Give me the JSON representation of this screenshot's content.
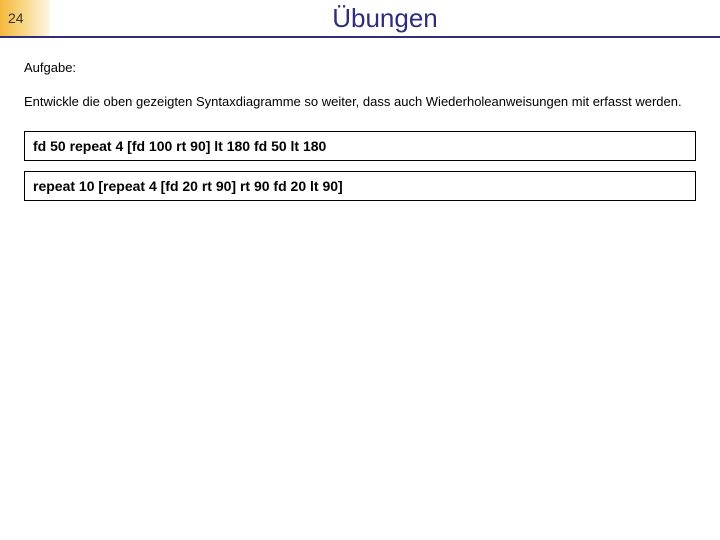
{
  "slide": {
    "number": "24",
    "title": "Übungen"
  },
  "task": {
    "label": "Aufgabe:",
    "text": "Entwickle die oben gezeigten Syntaxdiagramme so weiter, dass auch Wiederholeanweisungen mit erfasst werden."
  },
  "code_examples": [
    "fd 50 repeat 4 [fd 100 rt 90] lt 180 fd 50 lt 180",
    "repeat 10 [repeat 4 [fd 20 rt 90] rt 90 fd 20 lt 90]"
  ],
  "styling": {
    "title_color": "#2e2e7a",
    "title_fontsize": 26,
    "underline_color": "#2e2e7a",
    "number_box_gradient": [
      "#f5b83d",
      "#f8d98a",
      "#fdf6e6"
    ],
    "body_fontsize": 13,
    "code_fontsize": 14,
    "code_fontweight": "bold",
    "background_color": "#ffffff",
    "box_border_color": "#000000"
  }
}
